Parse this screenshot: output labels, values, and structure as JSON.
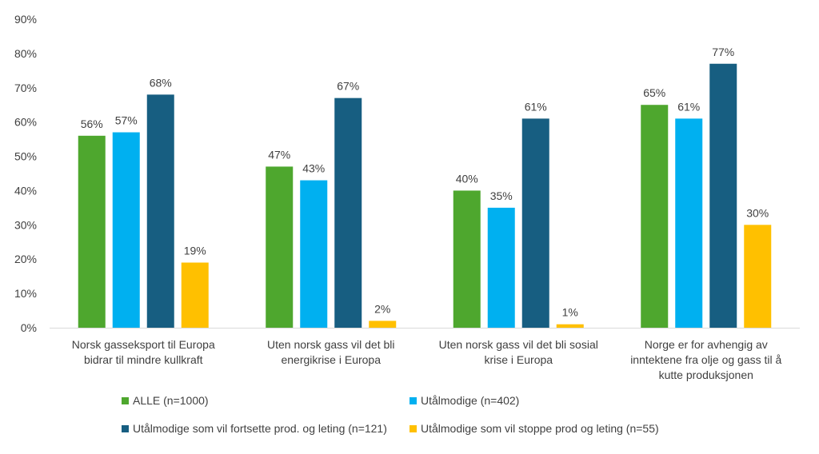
{
  "chart_data": {
    "type": "bar",
    "categories": [
      "Norsk gasseksport til Europa bidrar til mindre kullkraft",
      "Uten norsk gass vil det bli energikrise i Europa",
      "Uten norsk gass vil det bli sosial krise i Europa",
      "Norge er for avhengig av inntektene fra olje og gass til å kutte produksjonen"
    ],
    "category_lines": [
      [
        "Norsk gasseksport til Europa",
        "bidrar til mindre kullkraft"
      ],
      [
        "Uten norsk gass vil det bli",
        "energikrise i Europa"
      ],
      [
        "Uten norsk gass vil det bli sosial",
        "krise i Europa"
      ],
      [
        "Norge er for avhengig av",
        "inntektene fra olje og gass til å",
        "kutte produksjonen"
      ]
    ],
    "series": [
      {
        "name": "ALLE (n=1000)",
        "color": "#4ea72e",
        "values": [
          56,
          47,
          40,
          65
        ]
      },
      {
        "name": "Utålmodige (n=402)",
        "color": "#00b0f0",
        "values": [
          57,
          43,
          35,
          61
        ]
      },
      {
        "name": "Utålmodige som vil fortsette prod. og leting (n=121)",
        "color": "#175e81",
        "values": [
          68,
          67,
          61,
          77
        ]
      },
      {
        "name": "Utålmodige som vil stoppe prod og leting (n=55)",
        "color": "#ffc000",
        "values": [
          19,
          2,
          1,
          30
        ]
      }
    ],
    "ylim": [
      0,
      90
    ],
    "ytick_step": 10,
    "value_suffix": "%",
    "grid": false,
    "legend_position": "bottom",
    "title": "",
    "xlabel": "",
    "ylabel": ""
  }
}
